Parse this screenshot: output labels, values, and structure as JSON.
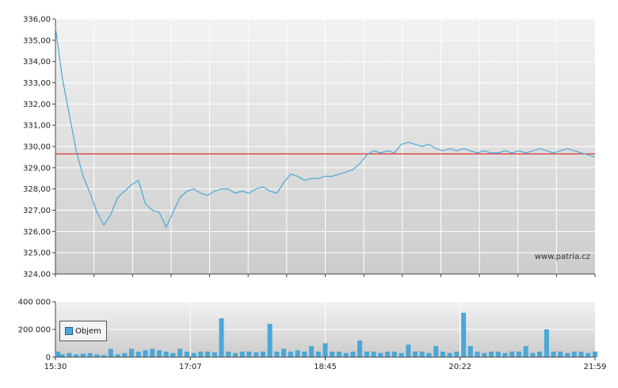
{
  "chart_data": [
    {
      "type": "line",
      "watermark": "www.patria.cz",
      "ylim": [
        324,
        336
      ],
      "y_ticks": [
        "324,00",
        "325,00",
        "326,00",
        "327,00",
        "328,00",
        "329,00",
        "330,00",
        "331,00",
        "332,00",
        "333,00",
        "334,00",
        "335,00",
        "336,00"
      ],
      "reference_value": 329.65,
      "colors": {
        "line": "#4aa8d8",
        "reference": "#e03030"
      },
      "x": [
        "15:30",
        "15:35",
        "15:40",
        "15:45",
        "15:50",
        "15:55",
        "16:00",
        "16:05",
        "16:10",
        "16:15",
        "16:20",
        "16:25",
        "16:30",
        "16:35",
        "16:40",
        "16:45",
        "16:50",
        "16:55",
        "17:00",
        "17:05",
        "17:10",
        "17:15",
        "17:20",
        "17:25",
        "17:30",
        "17:35",
        "17:40",
        "17:45",
        "17:50",
        "17:55",
        "18:00",
        "18:05",
        "18:10",
        "18:15",
        "18:20",
        "18:25",
        "18:30",
        "18:35",
        "18:40",
        "18:45",
        "18:50",
        "18:55",
        "19:00",
        "19:05",
        "19:10",
        "19:15",
        "19:20",
        "19:25",
        "19:30",
        "19:35",
        "19:40",
        "19:45",
        "19:50",
        "19:55",
        "20:00",
        "20:05",
        "20:10",
        "20:15",
        "20:20",
        "20:25",
        "20:30",
        "20:35",
        "20:40",
        "20:45",
        "20:50",
        "20:55",
        "21:00",
        "21:05",
        "21:10",
        "21:15",
        "21:20",
        "21:25",
        "21:30",
        "21:35",
        "21:40",
        "21:45",
        "21:50",
        "21:55",
        "21:59"
      ],
      "values": [
        335.6,
        333.2,
        331.5,
        329.8,
        328.6,
        327.8,
        326.9,
        326.3,
        326.8,
        327.6,
        327.9,
        328.2,
        328.4,
        327.3,
        327.0,
        326.9,
        326.2,
        326.9,
        327.6,
        327.9,
        328.0,
        327.8,
        327.7,
        327.9,
        328.0,
        328.0,
        327.8,
        327.9,
        327.8,
        328.0,
        328.1,
        327.9,
        327.8,
        328.3,
        328.7,
        328.6,
        328.4,
        328.5,
        328.5,
        328.6,
        328.6,
        328.7,
        328.8,
        328.9,
        329.2,
        329.6,
        329.8,
        329.7,
        329.8,
        329.7,
        330.1,
        330.2,
        330.1,
        330.0,
        330.1,
        329.9,
        329.8,
        329.9,
        329.8,
        329.9,
        329.8,
        329.7,
        329.8,
        329.7,
        329.7,
        329.8,
        329.7,
        329.8,
        329.7,
        329.8,
        329.9,
        329.8,
        329.7,
        329.8,
        329.9,
        329.8,
        329.7,
        329.6,
        329.5
      ]
    },
    {
      "type": "bar",
      "ylim": [
        0,
        400000
      ],
      "y_ticks": [
        "0",
        "200 000",
        "400 000"
      ],
      "x_ticks": [
        "15:30",
        "17:07",
        "18:45",
        "20:22",
        "21:59"
      ],
      "series": [
        {
          "name": "Objem"
        }
      ],
      "colors": {
        "bar": "#4aa8d8"
      },
      "x": [
        "15:30",
        "15:35",
        "15:40",
        "15:45",
        "15:50",
        "15:55",
        "16:00",
        "16:05",
        "16:10",
        "16:15",
        "16:20",
        "16:25",
        "16:30",
        "16:35",
        "16:40",
        "16:45",
        "16:50",
        "16:55",
        "17:00",
        "17:05",
        "17:10",
        "17:15",
        "17:20",
        "17:25",
        "17:30",
        "17:35",
        "17:40",
        "17:45",
        "17:50",
        "17:55",
        "18:00",
        "18:05",
        "18:10",
        "18:15",
        "18:20",
        "18:25",
        "18:30",
        "18:35",
        "18:40",
        "18:45",
        "18:50",
        "18:55",
        "19:00",
        "19:05",
        "19:10",
        "19:15",
        "19:20",
        "19:25",
        "19:30",
        "19:35",
        "19:40",
        "19:45",
        "19:50",
        "19:55",
        "20:00",
        "20:05",
        "20:10",
        "20:15",
        "20:20",
        "20:25",
        "20:30",
        "20:35",
        "20:40",
        "20:45",
        "20:50",
        "20:55",
        "21:00",
        "21:05",
        "21:10",
        "21:15",
        "21:20",
        "21:25",
        "21:30",
        "21:35",
        "21:40",
        "21:45",
        "21:50",
        "21:55",
        "21:59"
      ],
      "values": [
        40000,
        20000,
        30000,
        20000,
        25000,
        30000,
        20000,
        15000,
        60000,
        20000,
        30000,
        60000,
        40000,
        50000,
        60000,
        50000,
        40000,
        30000,
        60000,
        40000,
        30000,
        40000,
        40000,
        35000,
        280000,
        40000,
        30000,
        40000,
        40000,
        35000,
        40000,
        240000,
        40000,
        60000,
        40000,
        50000,
        40000,
        80000,
        40000,
        100000,
        40000,
        40000,
        30000,
        40000,
        120000,
        40000,
        40000,
        30000,
        40000,
        40000,
        30000,
        90000,
        40000,
        40000,
        30000,
        80000,
        40000,
        30000,
        40000,
        320000,
        80000,
        40000,
        30000,
        40000,
        40000,
        30000,
        40000,
        40000,
        80000,
        30000,
        40000,
        200000,
        40000,
        40000,
        30000,
        40000,
        40000,
        30000,
        40000
      ]
    }
  ]
}
